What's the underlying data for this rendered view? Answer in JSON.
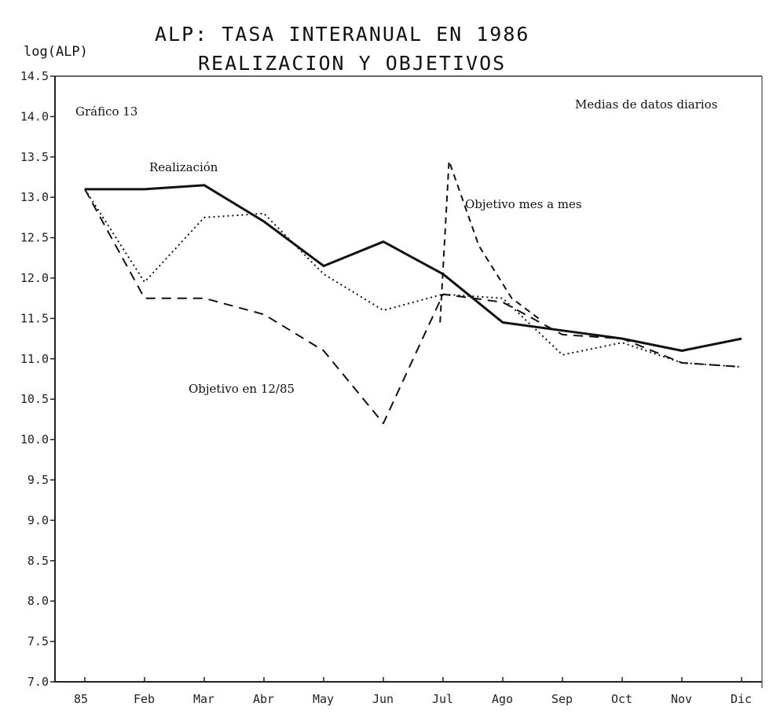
{
  "chart_data": {
    "type": "line",
    "title": "ALP: TASA INTERANUAL EN 1986",
    "subtitle": "REALIZACION Y OBJETIVOS",
    "ylabel": "log(ALP)",
    "xlabel": "",
    "ylim": [
      7.0,
      14.5
    ],
    "yticks": [
      "14.5",
      "14.0",
      "13.5",
      "13.0",
      "12.5",
      "12.0",
      "11.5",
      "11.0",
      "10.5",
      "10.0",
      "9.5",
      "9.0",
      "8.5",
      "8.0",
      "7.5",
      "7.0"
    ],
    "categories": [
      "85",
      "Feb",
      "Mar",
      "Abr",
      "May",
      "Jun",
      "Jul",
      "Ago",
      "Sep",
      "Oct",
      "Nov",
      "Dic"
    ],
    "annotations": {
      "chart_number": "Gráfico 13",
      "note": "Medias de datos diarios"
    },
    "series": [
      {
        "name": "Realización",
        "style": "solid",
        "color": "#111111",
        "values": [
          13.1,
          13.1,
          13.15,
          12.7,
          12.15,
          12.45,
          12.05,
          11.45,
          11.35,
          11.25,
          11.1,
          11.25
        ]
      },
      {
        "name": "Objetivo mes a mes",
        "style": "dotted",
        "color": "#111111",
        "values": [
          13.1,
          11.95,
          12.75,
          12.8,
          12.05,
          11.6,
          11.8,
          11.75,
          11.05,
          11.2,
          10.95,
          10.9
        ]
      },
      {
        "name": "Objetivo en 12/85",
        "style": "dashed",
        "color": "#111111",
        "values": [
          13.1,
          11.75,
          11.75,
          11.55,
          11.1,
          10.2,
          11.8,
          11.7,
          11.3,
          11.25,
          10.95,
          10.9
        ],
        "segments": [
          {
            "from": 6,
            "to": 6.5,
            "values": [
              11.8,
              12.6
            ]
          },
          {
            "from": 6.5,
            "to": 7,
            "values": [
              13.45,
              12.6
            ]
          }
        ]
      }
    ]
  }
}
